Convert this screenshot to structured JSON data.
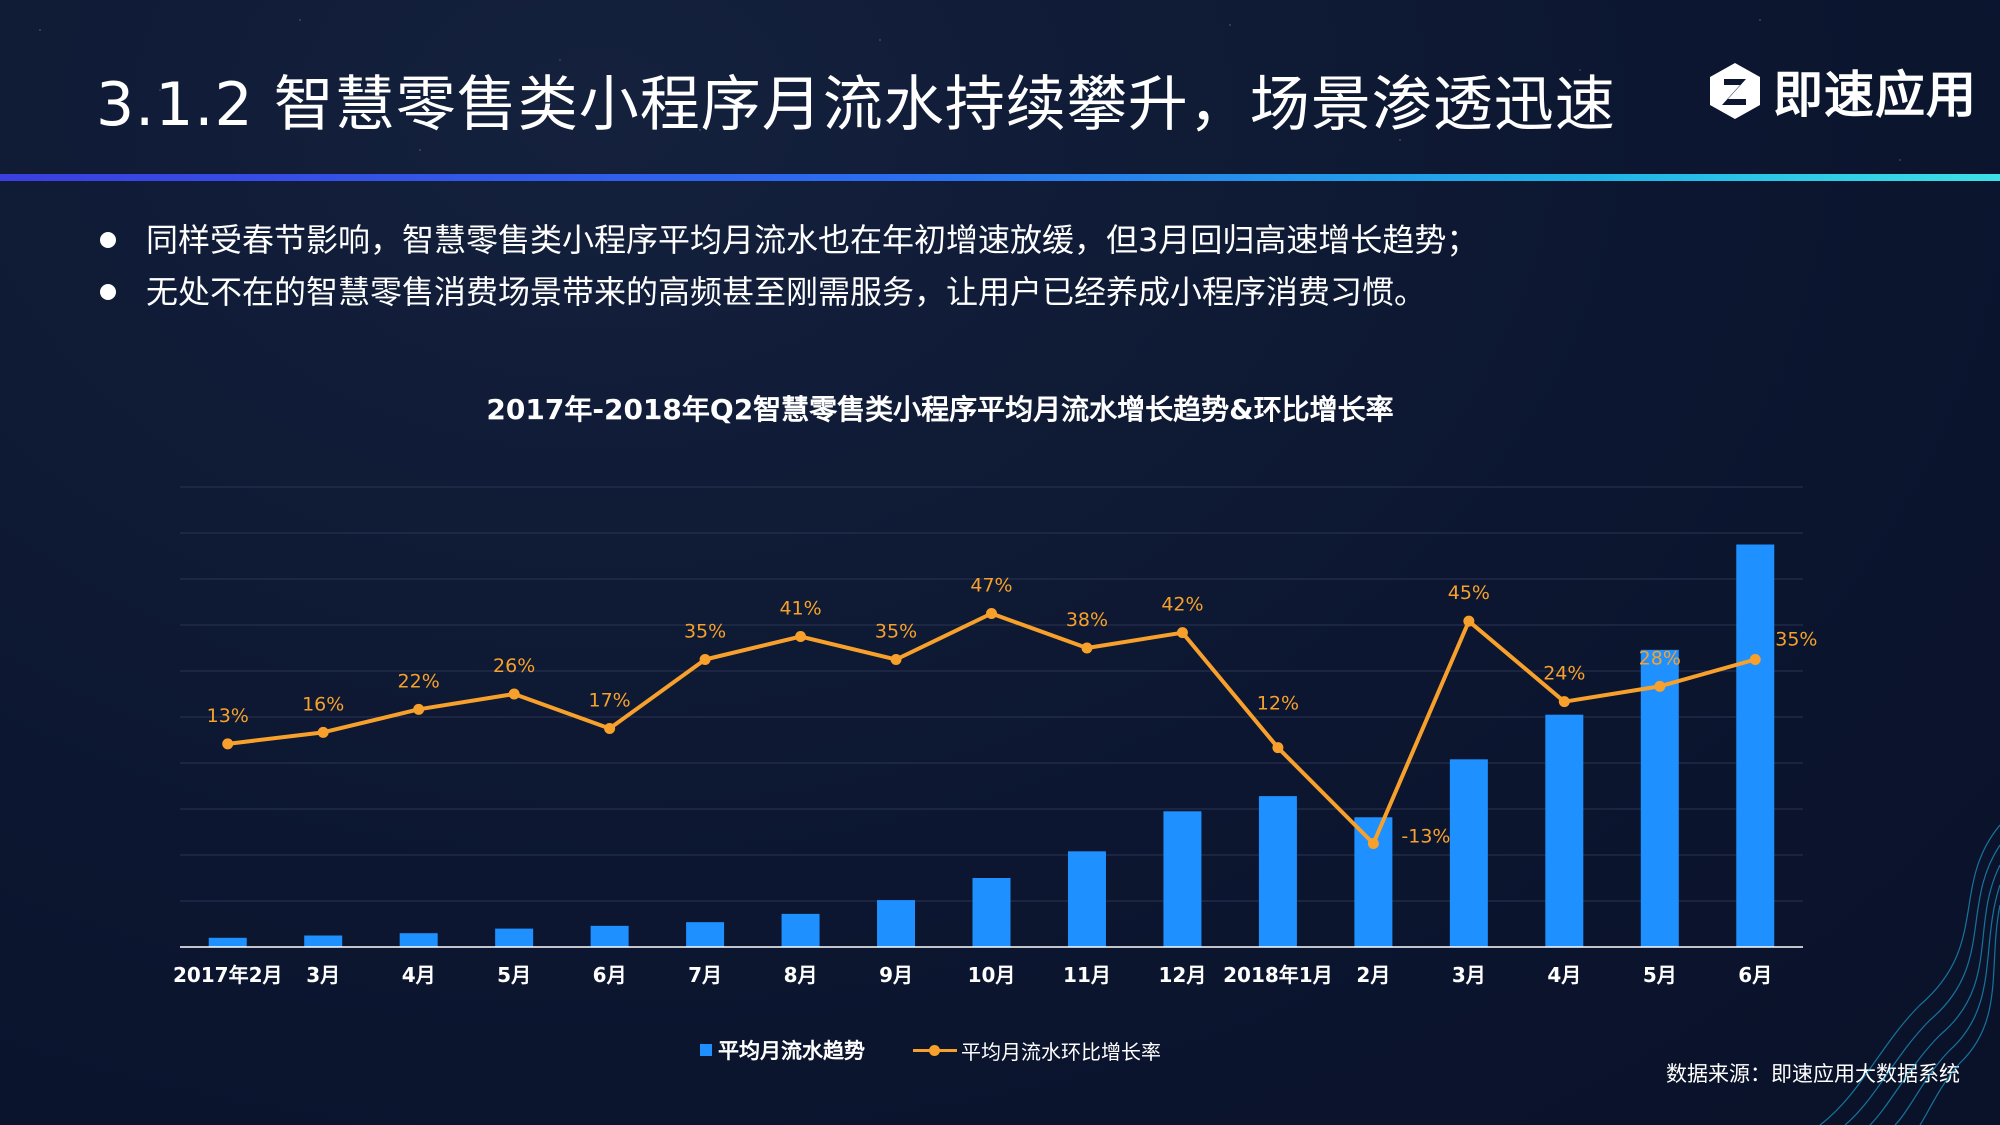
{
  "header": {
    "title": "3.1.2  智慧零售类小程序月流水持续攀升，场景渗透迅速",
    "logo_text": "即速应用"
  },
  "bullets": [
    "同样受春节影响，智慧零售类小程序平均月流水也在年初增速放缓，但3月回归高速增长趋势；",
    "无处不在的智慧零售消费场景带来的高频甚至刚需服务，让用户已经养成小程序消费习惯。"
  ],
  "source": "数据来源：即速应用大数据系统",
  "colors": {
    "bar": "#1e90ff",
    "line": "#f7a12c",
    "grid": "#2a3452",
    "axis": "#ffffff",
    "accent": "#2b6ef0"
  },
  "chart_data": {
    "type": "bar+line",
    "title": "2017年-2018年Q2智慧零售类小程序平均月流水增长趋势&环比增长率",
    "categories": [
      "2017年2月",
      "3月",
      "4月",
      "5月",
      "6月",
      "7月",
      "8月",
      "9月",
      "10月",
      "11月",
      "12月",
      "2018年1月",
      "2月",
      "3月",
      "4月",
      "5月",
      "6月"
    ],
    "series": [
      {
        "name": "平均月流水趋势",
        "kind": "bar",
        "axis": "left",
        "values": [
          2,
          2.5,
          3,
          4,
          4.6,
          5.4,
          7.2,
          10.2,
          15,
          20.8,
          29.5,
          32.8,
          28.2,
          40.8,
          50.5,
          64.6,
          87.5
        ]
      },
      {
        "name": "平均月流水环比增长率",
        "kind": "line",
        "axis": "right",
        "values": [
          13,
          16,
          22,
          26,
          17,
          35,
          41,
          35,
          47,
          38,
          42,
          12,
          -13,
          45,
          24,
          28,
          35
        ],
        "labels": [
          "13%",
          "16%",
          "22%",
          "26%",
          "17%",
          "35%",
          "41%",
          "35%",
          "47%",
          "38%",
          "42%",
          "12%",
          "-13%",
          "45%",
          "24%",
          "28%",
          "35%"
        ]
      }
    ],
    "ylim_left": [
      0,
      100
    ],
    "ylim_right": [
      -40,
      80
    ],
    "grid": true,
    "legend": "bottom-center"
  }
}
